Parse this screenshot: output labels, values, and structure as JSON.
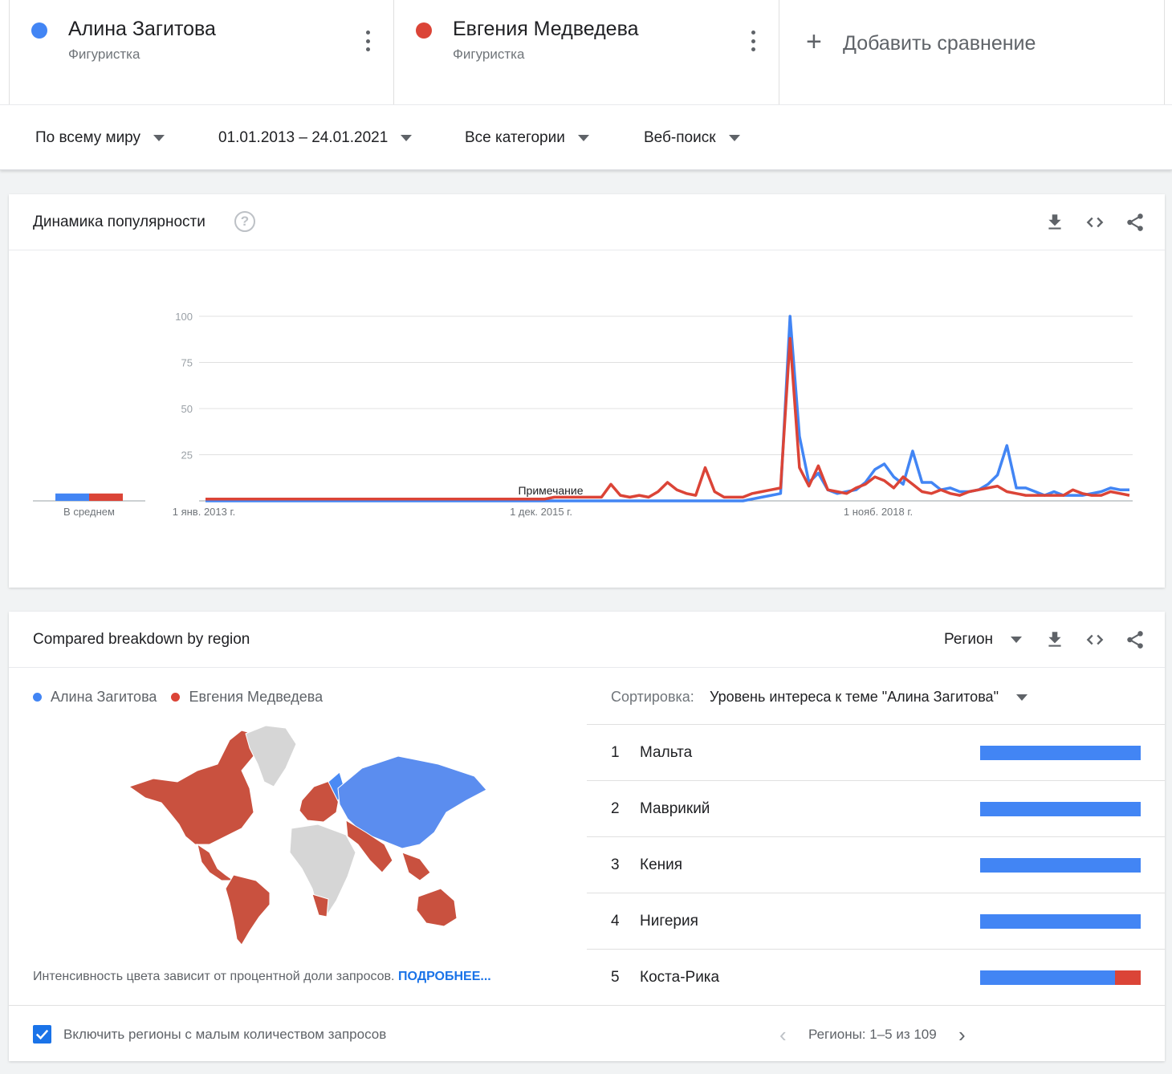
{
  "terms": [
    {
      "name": "Алина Загитова",
      "type": "Фигуристка",
      "color": "#4285f4"
    },
    {
      "name": "Евгения Медведева",
      "type": "Фигуристка",
      "color": "#db4437"
    }
  ],
  "add_comparison": {
    "label": "Добавить сравнение"
  },
  "filters": {
    "region": "По всему миру",
    "dates": "01.01.2013 – 24.01.2021",
    "category": "Все категории",
    "search_type": "Веб-поиск"
  },
  "interest_card": {
    "title": "Динамика популярности",
    "average_label": "В среднем",
    "note_label": "Примечание"
  },
  "chart_data": {
    "type": "line",
    "y_ticks": [
      "100",
      "75",
      "50",
      "25"
    ],
    "ylim": [
      0,
      100
    ],
    "x_tick_labels": [
      "1 янв. 2013 г.",
      "1 дек. 2015 г.",
      "1 нояб. 2018 г."
    ],
    "averages": [
      4,
      4
    ],
    "series": [
      {
        "name": "Алина Загитова",
        "color": "#4285f4",
        "values": [
          0,
          0,
          0,
          0,
          0,
          0,
          0,
          0,
          0,
          0,
          0,
          0,
          0,
          0,
          0,
          0,
          0,
          0,
          0,
          0,
          0,
          0,
          0,
          0,
          0,
          0,
          0,
          0,
          0,
          0,
          0,
          0,
          0,
          0,
          0,
          0,
          0,
          0,
          0,
          0,
          0,
          0,
          0,
          0,
          0,
          0,
          0,
          0,
          0,
          0,
          0,
          0,
          0,
          0,
          0,
          0,
          0,
          0,
          1,
          2,
          3,
          4,
          100,
          35,
          10,
          15,
          6,
          4,
          5,
          6,
          10,
          17,
          20,
          13,
          9,
          27,
          10,
          10,
          6,
          7,
          5,
          5,
          6,
          9,
          14,
          30,
          7,
          7,
          5,
          3,
          5,
          3,
          3,
          3,
          4,
          5,
          7,
          6,
          6
        ]
      },
      {
        "name": "Евгения Медведева",
        "color": "#db4437",
        "values": [
          1,
          1,
          1,
          1,
          1,
          1,
          1,
          1,
          1,
          1,
          1,
          1,
          1,
          1,
          1,
          1,
          1,
          1,
          1,
          1,
          1,
          1,
          1,
          1,
          1,
          1,
          1,
          1,
          1,
          1,
          1,
          1,
          1,
          1,
          1,
          1,
          1,
          2,
          2,
          2,
          2,
          2,
          2,
          9,
          3,
          2,
          3,
          2,
          5,
          10,
          6,
          4,
          3,
          18,
          5,
          2,
          2,
          2,
          4,
          5,
          6,
          7,
          88,
          18,
          8,
          19,
          6,
          5,
          4,
          7,
          9,
          13,
          11,
          7,
          13,
          9,
          5,
          4,
          6,
          4,
          3,
          5,
          6,
          7,
          8,
          5,
          4,
          3,
          3,
          3,
          3,
          3,
          6,
          4,
          3,
          3,
          5,
          4,
          3
        ]
      }
    ]
  },
  "region_card": {
    "title": "Compared breakdown by region",
    "dropdown": "Регион",
    "legend": [
      "Алина Загитова",
      "Евгения Медведева"
    ],
    "sort_label": "Сортировка:",
    "sort_value": "Уровень интереса к теме \"Алина Загитова\"",
    "map_note": "Интенсивность цвета зависит от процентной доли запросов.",
    "map_note_link": "ПОДРОБНЕЕ...",
    "regions": [
      {
        "rank": "1",
        "name": "Мальта",
        "share_a": 100,
        "share_b": 0
      },
      {
        "rank": "2",
        "name": "Маврикий",
        "share_a": 100,
        "share_b": 0
      },
      {
        "rank": "3",
        "name": "Кения",
        "share_a": 100,
        "share_b": 0
      },
      {
        "rank": "4",
        "name": "Нигерия",
        "share_a": 100,
        "share_b": 0
      },
      {
        "rank": "5",
        "name": "Коста-Рика",
        "share_a": 84,
        "share_b": 16
      }
    ],
    "include_low_volume": "Включить регионы с малым количеством запросов",
    "pagination": "Регионы: 1–5 из 109"
  }
}
